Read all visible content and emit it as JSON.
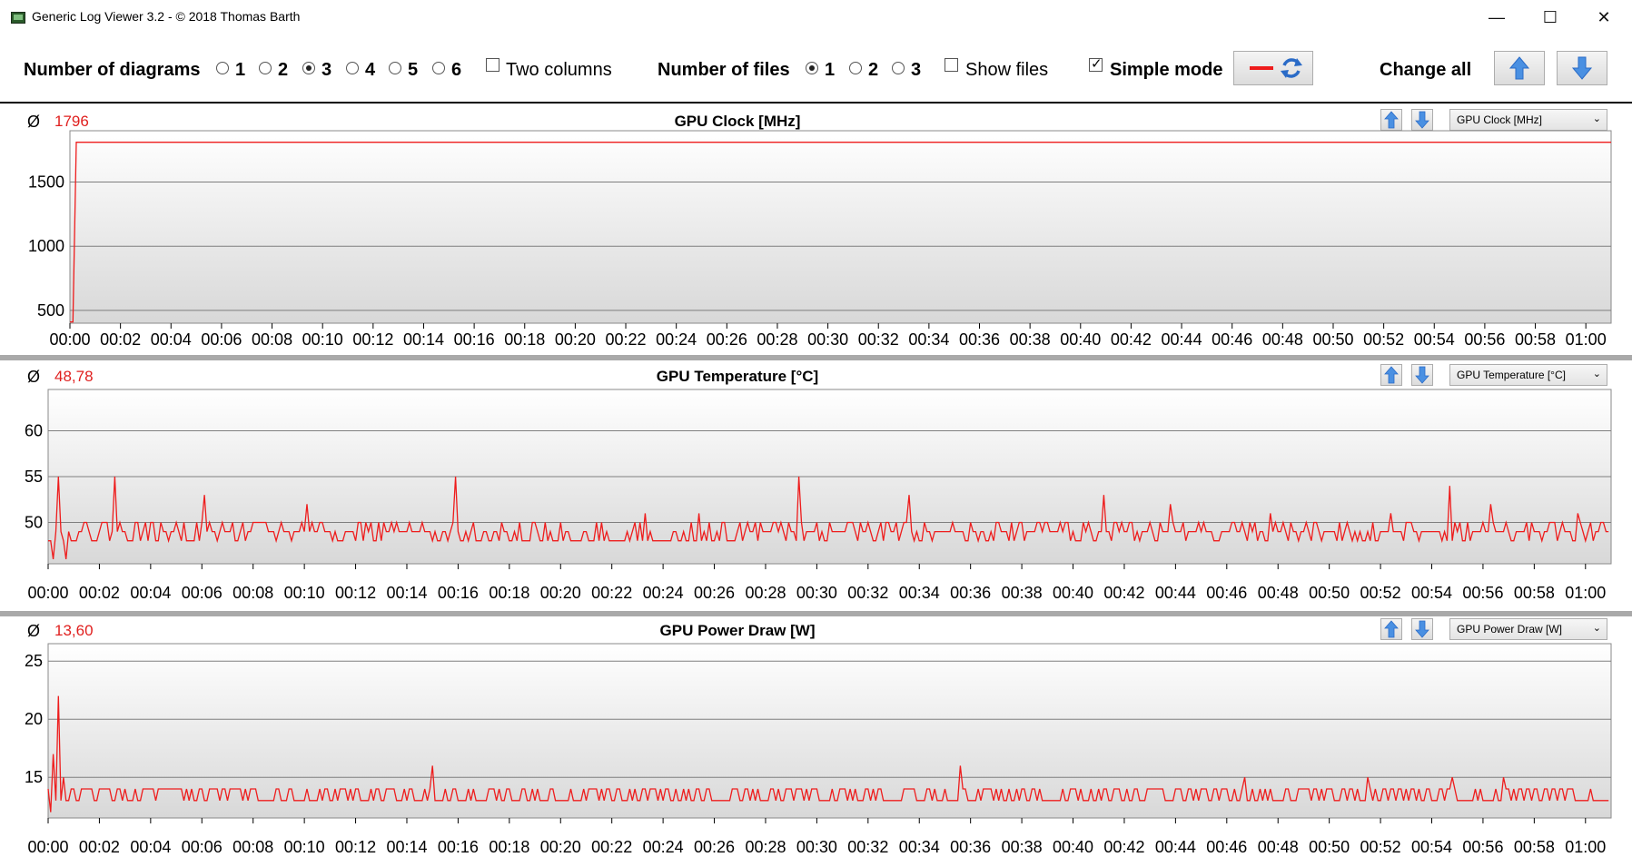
{
  "window": {
    "title": "Generic Log Viewer 3.2 - © 2018 Thomas Barth",
    "minimize_glyph": "—",
    "maximize_glyph": "☐",
    "close_glyph": "✕"
  },
  "toolbar": {
    "diagrams_label": "Number of diagrams",
    "diagram_options": [
      "1",
      "2",
      "3",
      "4",
      "5",
      "6"
    ],
    "diagram_selected": "3",
    "two_columns_label": "Two columns",
    "two_columns_checked": false,
    "files_label": "Number of files",
    "file_options": [
      "1",
      "2",
      "3"
    ],
    "file_selected": "1",
    "show_files_label": "Show files",
    "show_files_checked": false,
    "simple_mode_label": "Simple mode",
    "simple_mode_checked": true,
    "change_all_label": "Change all",
    "icons": [
      "red-line-icon",
      "refresh-icon",
      "arrow-up-icon",
      "arrow-down-icon"
    ]
  },
  "colors": {
    "series": "#ee1c1c",
    "average": "#e0201f",
    "plot_top": "#ffffff",
    "plot_bottom": "#d8d8d8",
    "grid": "#7f7f7f",
    "divider": "#a9a9a9"
  },
  "panels": [
    {
      "average_symbol": "Ø",
      "average": "1796",
      "title": "GPU Clock [MHz]",
      "dropdown": "GPU Clock [MHz]"
    },
    {
      "average_symbol": "Ø",
      "average": "48,78",
      "title": "GPU Temperature [°C]",
      "dropdown": "GPU Temperature [°C]"
    },
    {
      "average_symbol": "Ø",
      "average": "13,60",
      "title": "GPU Power Draw [W]",
      "dropdown": "GPU Power Draw [W]"
    }
  ],
  "chart_data": [
    {
      "type": "line",
      "title": "GPU Clock [MHz]",
      "xlabel": "",
      "ylabel": "",
      "x_range_minutes": [
        0,
        61
      ],
      "x_ticks": [
        "00:00",
        "00:02",
        "00:04",
        "00:06",
        "00:08",
        "00:10",
        "00:12",
        "00:14",
        "00:16",
        "00:18",
        "00:20",
        "00:22",
        "00:24",
        "00:26",
        "00:28",
        "00:30",
        "00:32",
        "00:34",
        "00:36",
        "00:38",
        "00:40",
        "00:42",
        "00:44",
        "00:46",
        "00:48",
        "00:50",
        "00:52",
        "00:54",
        "00:56",
        "00:58",
        "01:00"
      ],
      "y_ticks": [
        500,
        1000,
        1500
      ],
      "ylim": [
        400,
        1900
      ],
      "grid": true,
      "series": [
        {
          "color": "#ee1c1c",
          "points_min_value": [
            [
              0.0,
              410
            ],
            [
              0.12,
              410
            ],
            [
              0.25,
              1810
            ],
            [
              61.0,
              1810
            ]
          ]
        }
      ]
    },
    {
      "type": "line",
      "title": "GPU Temperature [°C]",
      "xlabel": "",
      "ylabel": "",
      "x_range_minutes": [
        0,
        61
      ],
      "x_ticks": [
        "00:00",
        "00:02",
        "00:04",
        "00:06",
        "00:08",
        "00:10",
        "00:12",
        "00:14",
        "00:16",
        "00:18",
        "00:20",
        "00:22",
        "00:24",
        "00:26",
        "00:28",
        "00:30",
        "00:32",
        "00:34",
        "00:36",
        "00:38",
        "00:40",
        "00:42",
        "00:44",
        "00:46",
        "00:48",
        "00:50",
        "00:52",
        "00:54",
        "00:56",
        "00:58",
        "01:00"
      ],
      "y_ticks": [
        50,
        55,
        60
      ],
      "ylim": [
        45.5,
        64.5
      ],
      "grid": true,
      "baseline": 49,
      "spikes_min_value": [
        [
          0.05,
          53
        ],
        [
          0.2,
          46
        ],
        [
          0.4,
          55
        ],
        [
          0.7,
          46
        ],
        [
          2.6,
          55
        ],
        [
          6.05,
          53
        ],
        [
          10.1,
          52
        ],
        [
          15.9,
          55
        ],
        [
          23.3,
          51
        ],
        [
          25.4,
          51
        ],
        [
          29.3,
          55
        ],
        [
          33.6,
          53
        ],
        [
          41.2,
          53
        ],
        [
          43.8,
          52
        ],
        [
          47.7,
          51
        ],
        [
          52.4,
          51
        ],
        [
          54.7,
          54
        ],
        [
          56.3,
          52
        ],
        [
          59.7,
          51
        ]
      ],
      "series": [
        {
          "color": "#ee1c1c"
        }
      ]
    },
    {
      "type": "line",
      "title": "GPU Power Draw [W]",
      "xlabel": "",
      "ylabel": "",
      "x_range_minutes": [
        0,
        61
      ],
      "x_ticks": [
        "00:00",
        "00:02",
        "00:04",
        "00:06",
        "00:08",
        "00:10",
        "00:12",
        "00:14",
        "00:16",
        "00:18",
        "00:20",
        "00:22",
        "00:24",
        "00:26",
        "00:28",
        "00:30",
        "00:32",
        "00:34",
        "00:36",
        "00:38",
        "00:40",
        "00:42",
        "00:44",
        "00:46",
        "00:48",
        "00:50",
        "00:52",
        "00:54",
        "00:56",
        "00:58",
        "01:00"
      ],
      "y_ticks": [
        15,
        20,
        25
      ],
      "ylim": [
        11.5,
        26.5
      ],
      "grid": true,
      "baseline": 13,
      "spikes_min_value": [
        [
          0.1,
          12
        ],
        [
          0.2,
          17
        ],
        [
          0.4,
          22
        ],
        [
          0.6,
          15
        ],
        [
          15.0,
          16
        ],
        [
          35.6,
          16
        ],
        [
          46.7,
          15
        ],
        [
          51.5,
          15
        ],
        [
          54.8,
          15
        ],
        [
          56.8,
          15
        ]
      ],
      "series": [
        {
          "color": "#ee1c1c"
        }
      ]
    }
  ]
}
